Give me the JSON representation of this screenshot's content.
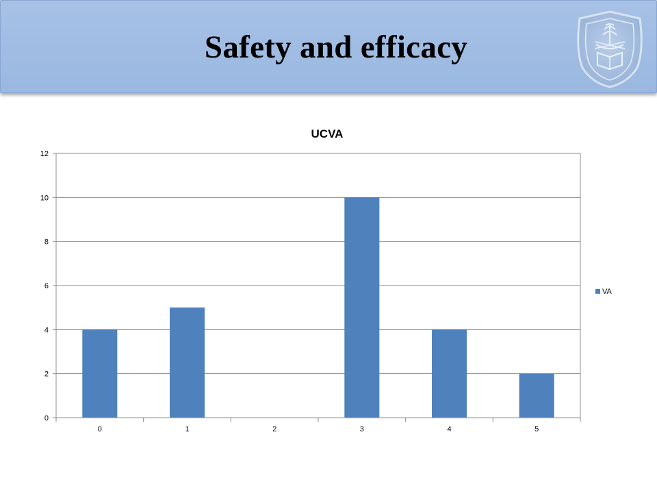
{
  "slide": {
    "title": "Safety and efficacy"
  },
  "logo": {
    "icon": "university-seal-icon"
  },
  "chart_data": {
    "type": "bar",
    "title": "UCVA",
    "categories": [
      "0",
      "1",
      "2",
      "3",
      "4",
      "5"
    ],
    "series": [
      {
        "name": "VA",
        "values": [
          4,
          5,
          0,
          10,
          4,
          2
        ],
        "color": "#4f81bd"
      }
    ],
    "ylim": [
      0,
      12
    ],
    "yticks": [
      "0",
      "2",
      "4",
      "6",
      "8",
      "10",
      "12"
    ],
    "xlabel": "",
    "ylabel": "",
    "grid": "horizontal",
    "legend_position": "right"
  }
}
